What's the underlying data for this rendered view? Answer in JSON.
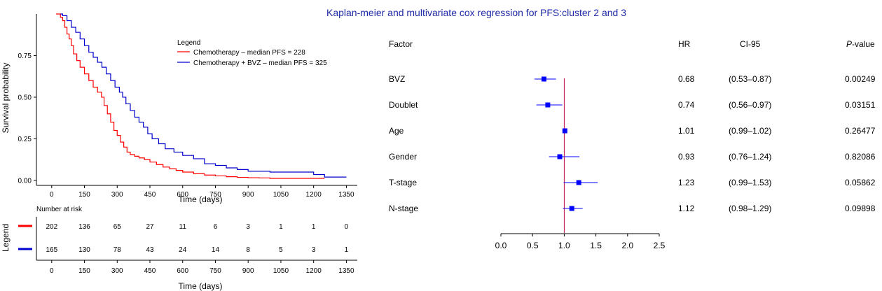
{
  "title": "Kaplan-meier and multivariate cox regression for PFS:cluster 2 and 3",
  "colors": {
    "chemo": "#ff0000",
    "bvz": "#0000cc",
    "title": "#1f2aa6",
    "ref_line": "#c00040",
    "marker": "#0000ff"
  },
  "km": {
    "type": "line",
    "ylabel": "Survival probability",
    "xlabel": "Time (days)",
    "xlim": [
      -70,
      1400
    ],
    "ylim": [
      -0.03,
      1.0
    ],
    "x_ticks": [
      0,
      150,
      300,
      450,
      600,
      750,
      900,
      1050,
      1200,
      1350
    ],
    "y_ticks": [
      0.0,
      0.25,
      0.5,
      0.75
    ],
    "y_tick_labels": [
      "0.00",
      "0.25",
      "0.50",
      "0.75"
    ],
    "legend_title": "Legend",
    "legend_position": "top-right",
    "series": [
      {
        "name": "Chemotherapy – median PFS = 228",
        "color_key": "chemo",
        "x": [
          20,
          40,
          50,
          60,
          70,
          80,
          90,
          100,
          115,
          130,
          150,
          170,
          190,
          210,
          228,
          240,
          255,
          270,
          285,
          300,
          315,
          330,
          345,
          360,
          380,
          400,
          425,
          450,
          480,
          510,
          540,
          570,
          600,
          650,
          700,
          750,
          800,
          850,
          900,
          950,
          1000,
          1100,
          1200,
          1250
        ],
        "y": [
          1.0,
          0.98,
          0.96,
          0.92,
          0.88,
          0.85,
          0.81,
          0.76,
          0.72,
          0.68,
          0.64,
          0.6,
          0.56,
          0.53,
          0.5,
          0.45,
          0.4,
          0.35,
          0.3,
          0.27,
          0.23,
          0.2,
          0.17,
          0.155,
          0.145,
          0.135,
          0.125,
          0.11,
          0.095,
          0.08,
          0.07,
          0.06,
          0.05,
          0.04,
          0.032,
          0.027,
          0.022,
          0.018,
          0.016,
          0.015,
          0.012,
          0.012,
          0.012,
          0.012
        ]
      },
      {
        "name": "Chemotherapy + BVZ – median PFS = 325",
        "color_key": "bvz",
        "x": [
          40,
          50,
          70,
          90,
          110,
          130,
          150,
          170,
          190,
          210,
          230,
          250,
          270,
          290,
          310,
          325,
          340,
          360,
          380,
          400,
          420,
          440,
          460,
          490,
          520,
          560,
          600,
          650,
          700,
          750,
          800,
          850,
          900,
          1000,
          1100,
          1200,
          1250,
          1300,
          1350
        ],
        "y": [
          1.0,
          0.99,
          0.96,
          0.92,
          0.89,
          0.85,
          0.81,
          0.77,
          0.74,
          0.71,
          0.68,
          0.64,
          0.6,
          0.56,
          0.53,
          0.5,
          0.46,
          0.42,
          0.38,
          0.35,
          0.32,
          0.28,
          0.25,
          0.22,
          0.19,
          0.17,
          0.15,
          0.13,
          0.1,
          0.09,
          0.075,
          0.065,
          0.055,
          0.05,
          0.05,
          0.035,
          0.02,
          0.02,
          0.02
        ]
      }
    ]
  },
  "risk_table": {
    "title": "Number at risk",
    "legend_label": "Legend",
    "xlabel": "Time (days)",
    "times": [
      0,
      150,
      300,
      450,
      600,
      750,
      900,
      1050,
      1200,
      1350
    ],
    "rows": [
      {
        "color_key": "chemo",
        "values": [
          "202",
          "136",
          "65",
          "27",
          "11",
          "6",
          "3",
          "1",
          "1",
          "0"
        ]
      },
      {
        "color_key": "bvz",
        "values": [
          "165",
          "130",
          "78",
          "43",
          "24",
          "14",
          "8",
          "5",
          "3",
          "1"
        ]
      }
    ]
  },
  "forest": {
    "type": "forest",
    "headers": {
      "factor": "Factor",
      "hr": "HR",
      "ci": "CI-95",
      "p_italic": "P",
      "p_rest": "-value"
    },
    "x_ticks": [
      0.0,
      0.5,
      1.0,
      1.5,
      2.0,
      2.5
    ],
    "x_tick_labels": [
      "0.0",
      "0.5",
      "1.0",
      "1.5",
      "2.0",
      "2.5"
    ],
    "xlim": [
      0.0,
      2.5
    ],
    "ref": 1.0,
    "rows": [
      {
        "factor": "BVZ",
        "hr": 0.68,
        "lo": 0.53,
        "hi": 0.87,
        "hr_text": "0.68",
        "ci_text": "(0.53–0.87)",
        "p_text": "0.00249"
      },
      {
        "factor": "Doublet",
        "hr": 0.74,
        "lo": 0.56,
        "hi": 0.97,
        "hr_text": "0.74",
        "ci_text": "(0.56–0.97)",
        "p_text": "0.03151"
      },
      {
        "factor": "Age",
        "hr": 1.01,
        "lo": 0.99,
        "hi": 1.02,
        "hr_text": "1.01",
        "ci_text": "(0.99–1.02)",
        "p_text": "0.26477"
      },
      {
        "factor": "Gender",
        "hr": 0.93,
        "lo": 0.76,
        "hi": 1.24,
        "hr_text": "0.93",
        "ci_text": "(0.76–1.24)",
        "p_text": "0.82086"
      },
      {
        "factor": "T-stage",
        "hr": 1.23,
        "lo": 0.99,
        "hi": 1.53,
        "hr_text": "1.23",
        "ci_text": "(0.99–1.53)",
        "p_text": "0.05862"
      },
      {
        "factor": "N-stage",
        "hr": 1.12,
        "lo": 0.98,
        "hi": 1.29,
        "hr_text": "1.12",
        "ci_text": "(0.98–1.29)",
        "p_text": "0.09898"
      }
    ]
  }
}
